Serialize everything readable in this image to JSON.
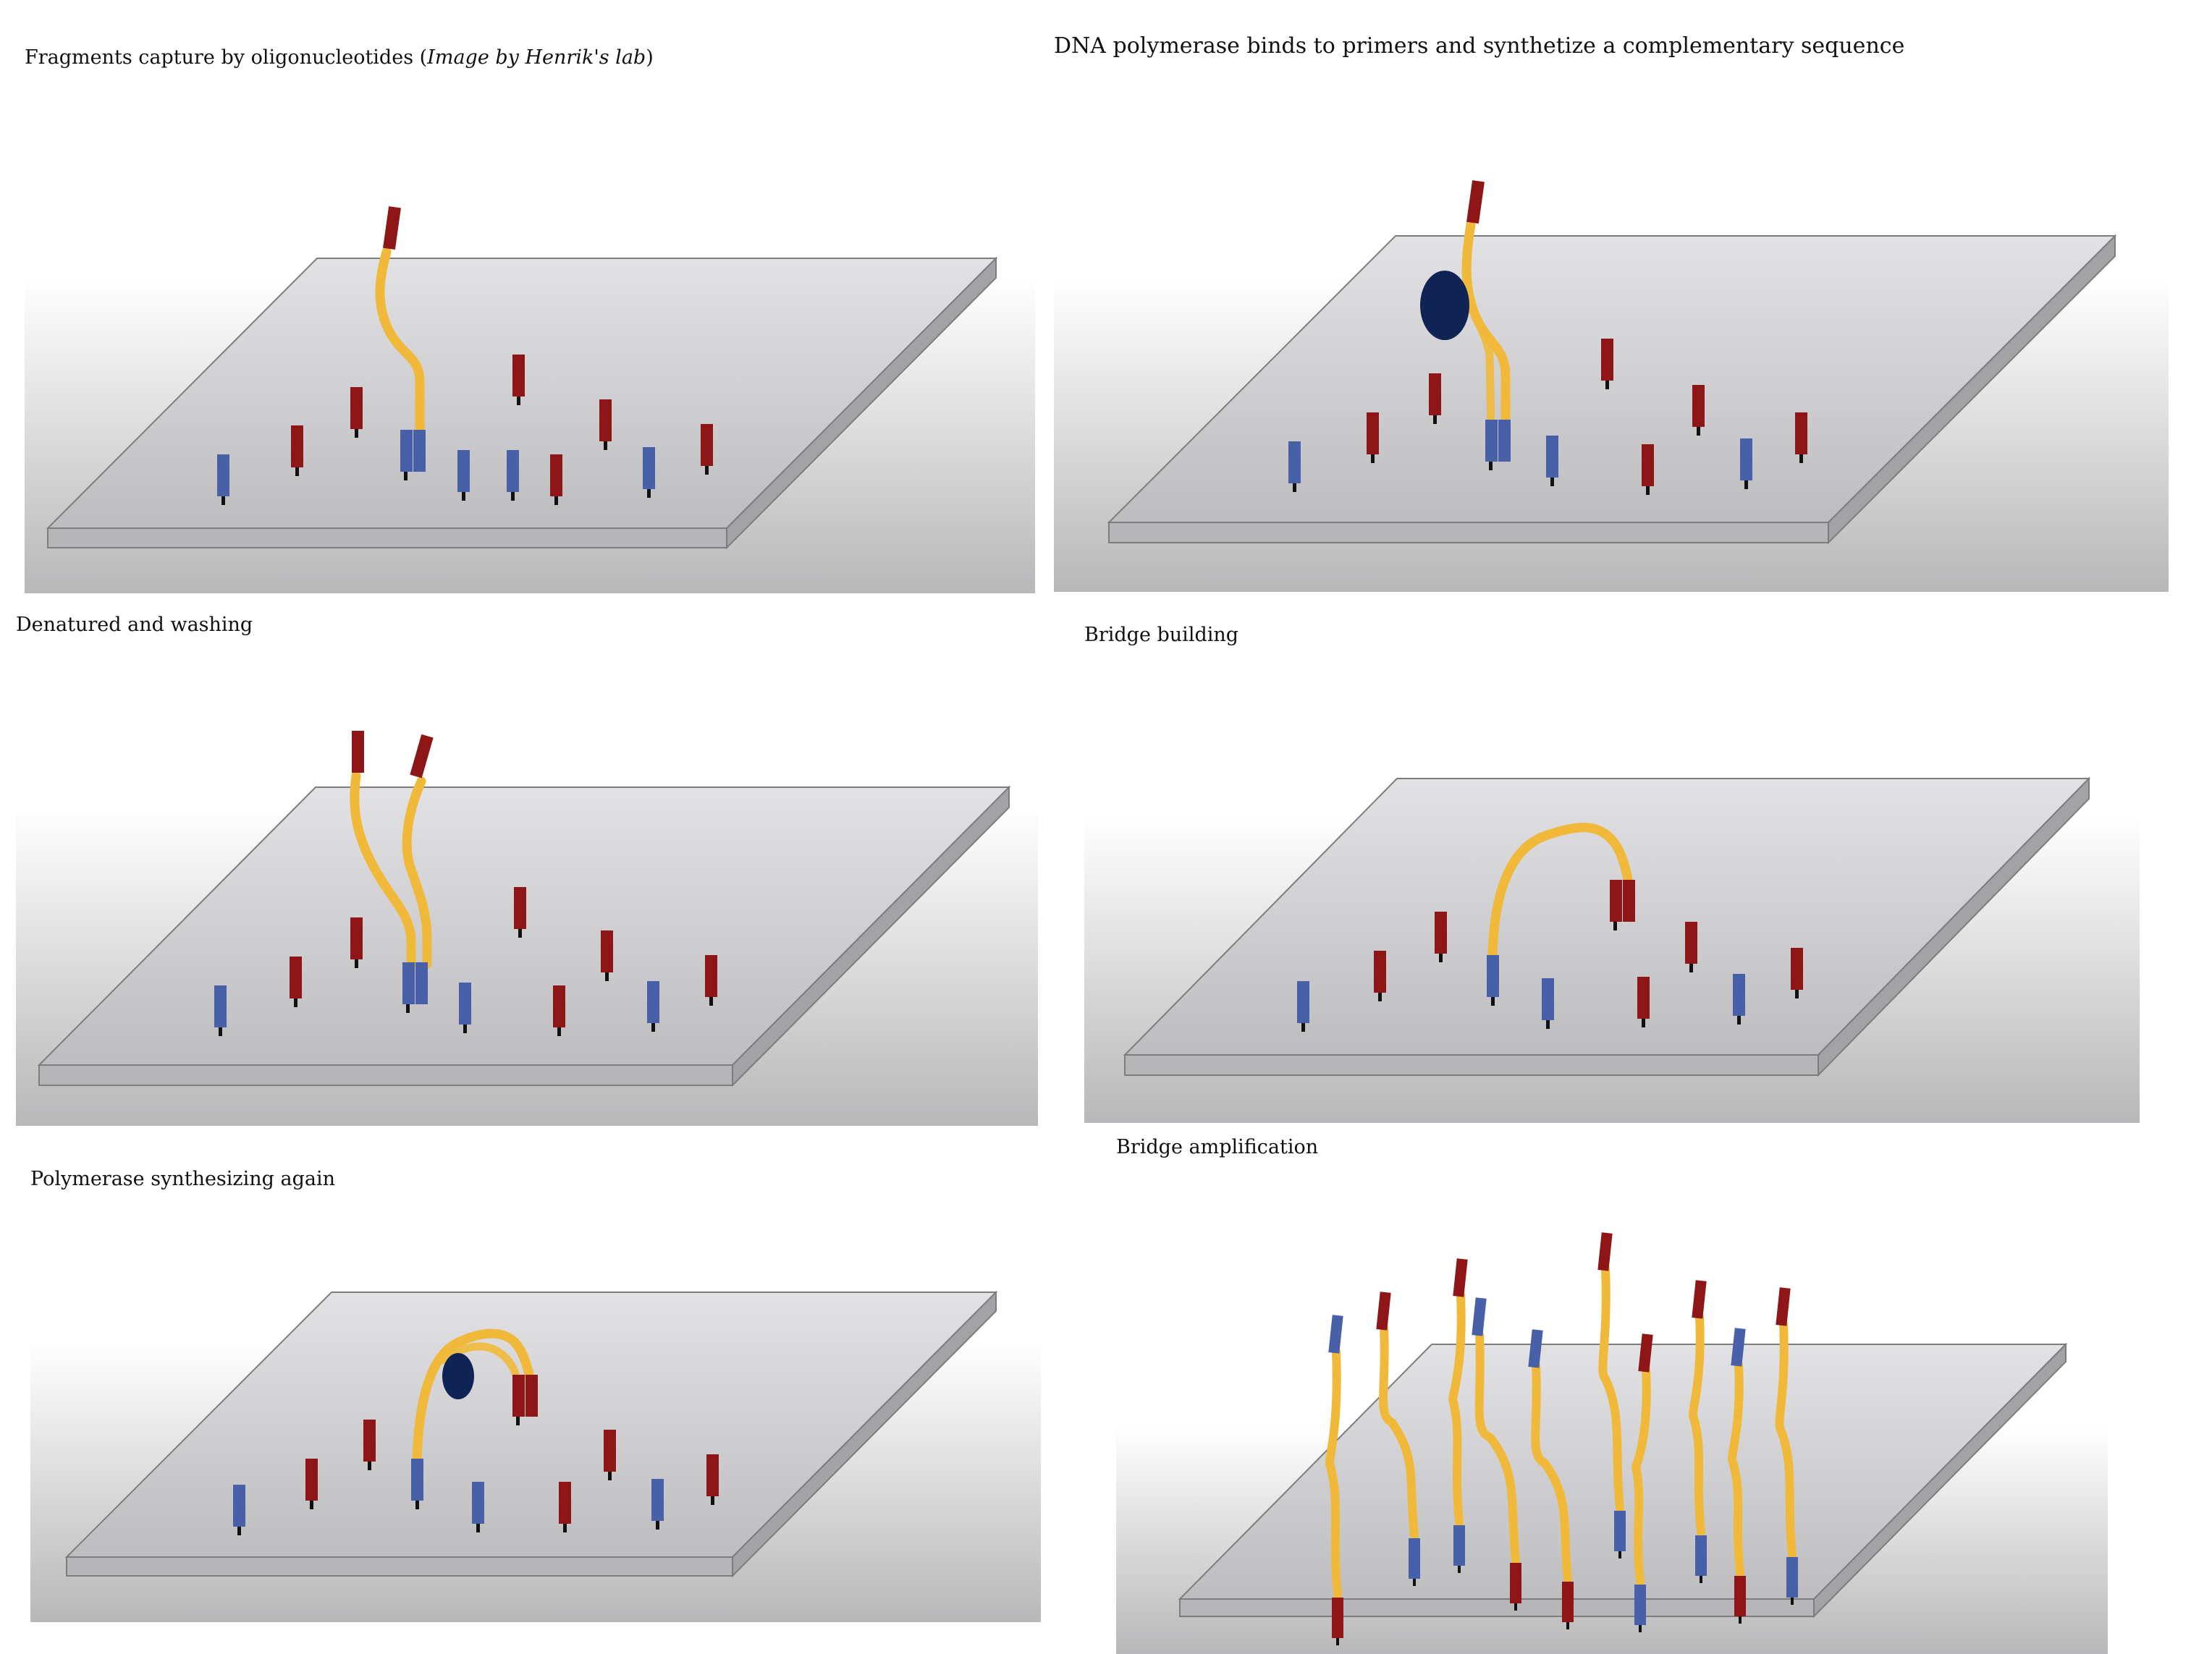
{
  "captions": {
    "panel1_main": "Fragments capture by oligonucleotides (",
    "panel1_italic": "Image by Henrik's lab",
    "panel1_close": ")",
    "panel2": "DNA polymerase binds to primers and synthetize a complementary sequence",
    "panel3": "Denatured and washing",
    "panel4": "Bridge building",
    "panel5": "Bridge amplification",
    "panel6": "Polymerase synthesizing again"
  },
  "colors": {
    "primer_red": "#8e1616",
    "primer_blue": "#4760a8",
    "dna_strand": "#f0b93a",
    "polymerase": "#0f2355",
    "flowcell_top": "#e2e2e5",
    "flowcell_side": "#a3a3a6",
    "background_gradient_top": "#ffffff",
    "background_gradient_bottom": "#b8b8ba"
  }
}
